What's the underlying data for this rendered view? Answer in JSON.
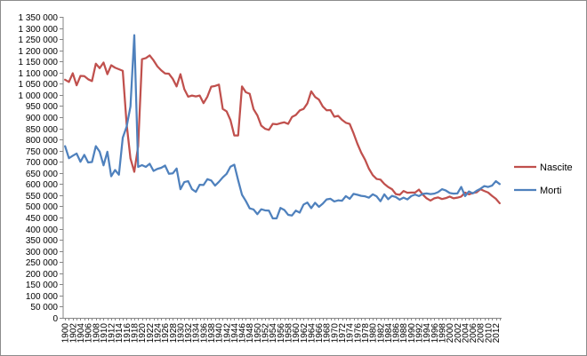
{
  "chart_data": {
    "type": "line",
    "title": "",
    "xlabel": "",
    "ylabel": "",
    "ylim": [
      0,
      1350000
    ],
    "y_step": 50000,
    "x_range": [
      1900,
      2013
    ],
    "x_tick_step": 2,
    "grid": false,
    "legend_position": "right",
    "series": [
      {
        "name": "Nascite",
        "color": "#c0504d",
        "points": [
          [
            1900,
            1068000
          ],
          [
            1901,
            1058000
          ],
          [
            1902,
            1097000
          ],
          [
            1903,
            1043000
          ],
          [
            1904,
            1085000
          ],
          [
            1905,
            1084000
          ],
          [
            1906,
            1070000
          ],
          [
            1907,
            1062000
          ],
          [
            1908,
            1140000
          ],
          [
            1909,
            1120000
          ],
          [
            1910,
            1145000
          ],
          [
            1911,
            1093000
          ],
          [
            1912,
            1133000
          ],
          [
            1913,
            1122000
          ],
          [
            1914,
            1115000
          ],
          [
            1915,
            1108000
          ],
          [
            1916,
            870000
          ],
          [
            1917,
            715000
          ],
          [
            1918,
            655000
          ],
          [
            1919,
            770000
          ],
          [
            1920,
            1160000
          ],
          [
            1921,
            1165000
          ],
          [
            1922,
            1177000
          ],
          [
            1923,
            1155000
          ],
          [
            1924,
            1128000
          ],
          [
            1925,
            1110000
          ],
          [
            1926,
            1096000
          ],
          [
            1927,
            1095000
          ],
          [
            1928,
            1072000
          ],
          [
            1929,
            1038000
          ],
          [
            1930,
            1093000
          ],
          [
            1931,
            1026000
          ],
          [
            1932,
            992000
          ],
          [
            1933,
            997000
          ],
          [
            1934,
            993000
          ],
          [
            1935,
            997000
          ],
          [
            1936,
            963000
          ],
          [
            1937,
            992000
          ],
          [
            1938,
            1037000
          ],
          [
            1939,
            1040000
          ],
          [
            1940,
            1046000
          ],
          [
            1941,
            937000
          ],
          [
            1942,
            926000
          ],
          [
            1943,
            887000
          ],
          [
            1944,
            818000
          ],
          [
            1945,
            818000
          ],
          [
            1946,
            1038000
          ],
          [
            1947,
            1012000
          ],
          [
            1948,
            1005000
          ],
          [
            1949,
            936000
          ],
          [
            1950,
            908000
          ],
          [
            1951,
            862000
          ],
          [
            1952,
            848000
          ],
          [
            1953,
            843000
          ],
          [
            1954,
            870000
          ],
          [
            1955,
            868000
          ],
          [
            1956,
            873000
          ],
          [
            1957,
            877000
          ],
          [
            1958,
            870000
          ],
          [
            1959,
            901000
          ],
          [
            1960,
            910000
          ],
          [
            1961,
            930000
          ],
          [
            1962,
            937000
          ],
          [
            1963,
            962000
          ],
          [
            1964,
            1016000
          ],
          [
            1965,
            991000
          ],
          [
            1966,
            979000
          ],
          [
            1967,
            948000
          ],
          [
            1968,
            931000
          ],
          [
            1969,
            932000
          ],
          [
            1970,
            902000
          ],
          [
            1971,
            906000
          ],
          [
            1972,
            888000
          ],
          [
            1973,
            875000
          ],
          [
            1974,
            870000
          ],
          [
            1975,
            828000
          ],
          [
            1976,
            781000
          ],
          [
            1977,
            741000
          ],
          [
            1978,
            709000
          ],
          [
            1979,
            669000
          ],
          [
            1980,
            640000
          ],
          [
            1981,
            623000
          ],
          [
            1982,
            620000
          ],
          [
            1983,
            601000
          ],
          [
            1984,
            587000
          ],
          [
            1985,
            577000
          ],
          [
            1986,
            555000
          ],
          [
            1987,
            552000
          ],
          [
            1988,
            569000
          ],
          [
            1989,
            561000
          ],
          [
            1990,
            562000
          ],
          [
            1991,
            562000
          ],
          [
            1992,
            575000
          ],
          [
            1993,
            553000
          ],
          [
            1994,
            536000
          ],
          [
            1995,
            526000
          ],
          [
            1996,
            536000
          ],
          [
            1997,
            540000
          ],
          [
            1998,
            533000
          ],
          [
            1999,
            537000
          ],
          [
            2000,
            544000
          ],
          [
            2001,
            536000
          ],
          [
            2002,
            539000
          ],
          [
            2003,
            544000
          ],
          [
            2004,
            562000
          ],
          [
            2005,
            554000
          ],
          [
            2006,
            560000
          ],
          [
            2007,
            563000
          ],
          [
            2008,
            577000
          ],
          [
            2009,
            569000
          ],
          [
            2010,
            562000
          ],
          [
            2011,
            547000
          ],
          [
            2012,
            534000
          ],
          [
            2013,
            514000
          ]
        ]
      },
      {
        "name": "Morti",
        "color": "#4f81bd",
        "points": [
          [
            1900,
            770000
          ],
          [
            1901,
            716000
          ],
          [
            1902,
            727000
          ],
          [
            1903,
            737000
          ],
          [
            1904,
            700000
          ],
          [
            1905,
            731000
          ],
          [
            1906,
            697000
          ],
          [
            1907,
            699000
          ],
          [
            1908,
            770000
          ],
          [
            1909,
            745000
          ],
          [
            1910,
            684000
          ],
          [
            1911,
            745000
          ],
          [
            1912,
            635000
          ],
          [
            1913,
            663000
          ],
          [
            1914,
            642000
          ],
          [
            1915,
            808000
          ],
          [
            1916,
            857000
          ],
          [
            1917,
            948000
          ],
          [
            1918,
            1268000
          ],
          [
            1919,
            677000
          ],
          [
            1920,
            685000
          ],
          [
            1921,
            677000
          ],
          [
            1922,
            691000
          ],
          [
            1923,
            659000
          ],
          [
            1924,
            668000
          ],
          [
            1925,
            673000
          ],
          [
            1926,
            683000
          ],
          [
            1927,
            646000
          ],
          [
            1928,
            648000
          ],
          [
            1929,
            670000
          ],
          [
            1930,
            577000
          ],
          [
            1931,
            609000
          ],
          [
            1932,
            613000
          ],
          [
            1933,
            577000
          ],
          [
            1934,
            565000
          ],
          [
            1935,
            597000
          ],
          [
            1936,
            596000
          ],
          [
            1937,
            622000
          ],
          [
            1938,
            616000
          ],
          [
            1939,
            593000
          ],
          [
            1940,
            610000
          ],
          [
            1941,
            630000
          ],
          [
            1942,
            646000
          ],
          [
            1943,
            678000
          ],
          [
            1944,
            687000
          ],
          [
            1945,
            617000
          ],
          [
            1946,
            552000
          ],
          [
            1947,
            524000
          ],
          [
            1948,
            491000
          ],
          [
            1949,
            486000
          ],
          [
            1950,
            465000
          ],
          [
            1951,
            487000
          ],
          [
            1952,
            482000
          ],
          [
            1953,
            481000
          ],
          [
            1954,
            446000
          ],
          [
            1955,
            446000
          ],
          [
            1956,
            493000
          ],
          [
            1957,
            484000
          ],
          [
            1958,
            462000
          ],
          [
            1959,
            459000
          ],
          [
            1960,
            481000
          ],
          [
            1961,
            472000
          ],
          [
            1962,
            508000
          ],
          [
            1963,
            517000
          ],
          [
            1964,
            492000
          ],
          [
            1965,
            516000
          ],
          [
            1966,
            498000
          ],
          [
            1967,
            512000
          ],
          [
            1968,
            531000
          ],
          [
            1969,
            534000
          ],
          [
            1970,
            522000
          ],
          [
            1971,
            527000
          ],
          [
            1972,
            525000
          ],
          [
            1973,
            546000
          ],
          [
            1974,
            534000
          ],
          [
            1975,
            556000
          ],
          [
            1976,
            552000
          ],
          [
            1977,
            547000
          ],
          [
            1978,
            545000
          ],
          [
            1979,
            539000
          ],
          [
            1980,
            554000
          ],
          [
            1981,
            545000
          ],
          [
            1982,
            523000
          ],
          [
            1983,
            554000
          ],
          [
            1984,
            532000
          ],
          [
            1985,
            547000
          ],
          [
            1986,
            542000
          ],
          [
            1987,
            530000
          ],
          [
            1988,
            539000
          ],
          [
            1989,
            531000
          ],
          [
            1990,
            546000
          ],
          [
            1991,
            553000
          ],
          [
            1992,
            546000
          ],
          [
            1993,
            556000
          ],
          [
            1994,
            558000
          ],
          [
            1995,
            555000
          ],
          [
            1996,
            557000
          ],
          [
            1997,
            564000
          ],
          [
            1998,
            577000
          ],
          [
            1999,
            571000
          ],
          [
            2000,
            560000
          ],
          [
            2001,
            557000
          ],
          [
            2002,
            558000
          ],
          [
            2003,
            587000
          ],
          [
            2004,
            546000
          ],
          [
            2005,
            567000
          ],
          [
            2006,
            558000
          ],
          [
            2007,
            570000
          ],
          [
            2008,
            579000
          ],
          [
            2009,
            591000
          ],
          [
            2010,
            587000
          ],
          [
            2011,
            593000
          ],
          [
            2012,
            613000
          ],
          [
            2013,
            600000
          ]
        ]
      }
    ]
  }
}
